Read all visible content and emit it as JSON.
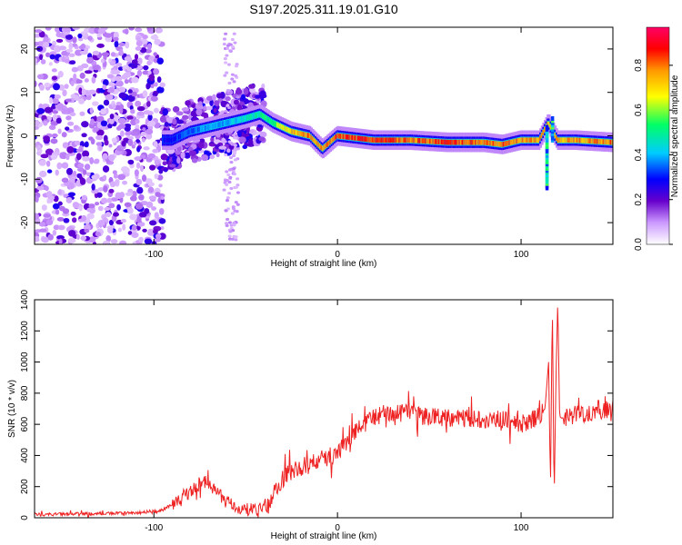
{
  "title": "S197.2025.311.19.01.G10",
  "chart_data": [
    {
      "type": "heatmap",
      "title": "S197.2025.311.19.01.G10",
      "xlabel": "Height of straight line (km)",
      "ylabel": "Frequency (Hz)",
      "xlim": [
        -165,
        150
      ],
      "ylim": [
        -25,
        25
      ],
      "xticks": [
        -100,
        0,
        100
      ],
      "yticks": [
        -20,
        -10,
        0,
        10,
        20
      ],
      "colorbar": {
        "label": "Normalized spectral amplitude",
        "range": [
          0.0,
          0.97
        ],
        "ticks": [
          "0.0",
          "0.2",
          "0.4",
          "0.6",
          "0.8"
        ],
        "tick_values": [
          0.0,
          0.2,
          0.4,
          0.6,
          0.8
        ],
        "colors": [
          "#ffffff",
          "#cc99ff",
          "#6600cc",
          "#0000ff",
          "#00ccff",
          "#00ff66",
          "#ffff00",
          "#ff9900",
          "#ff0000",
          "#ff0066"
        ]
      },
      "ridge": {
        "x": [
          -90,
          -80,
          -70,
          -60,
          -50,
          -42,
          -35,
          -25,
          -15,
          -8,
          0,
          20,
          40,
          60,
          80,
          90,
          100,
          110,
          115,
          120,
          130,
          150
        ],
        "frequency": [
          -1,
          1,
          2,
          3,
          4,
          5,
          3,
          1,
          0,
          -3,
          0,
          -1,
          -1,
          -1.5,
          -1.5,
          -2,
          -1,
          -1,
          3,
          -1,
          -1,
          -1.5
        ],
        "amplitude": [
          0.35,
          0.4,
          0.45,
          0.45,
          0.5,
          0.55,
          0.6,
          0.75,
          0.85,
          0.8,
          0.9,
          0.9,
          0.85,
          0.9,
          0.85,
          0.85,
          0.8,
          0.8,
          0.75,
          0.8,
          0.8,
          0.85
        ]
      },
      "noise_region_x": [
        -165,
        -95
      ]
    },
    {
      "type": "line",
      "xlabel": "Height of straight line (km)",
      "ylabel": "SNR (10 * v/v)",
      "xlim": [
        -165,
        150
      ],
      "ylim": [
        0,
        1400
      ],
      "xticks": [
        -100,
        0,
        100
      ],
      "yticks": [
        0,
        200,
        400,
        600,
        800,
        1000,
        1200,
        1400
      ],
      "series": [
        {
          "name": "SNR",
          "color": "#ee2222",
          "x": [
            -165,
            -140,
            -110,
            -95,
            -85,
            -78,
            -72,
            -68,
            -62,
            -55,
            -45,
            -38,
            -33,
            -28,
            -20,
            -12,
            -5,
            0,
            5,
            10,
            20,
            30,
            50,
            70,
            90,
            100,
            105,
            110,
            113,
            115,
            116,
            117,
            118,
            119,
            120,
            121,
            122,
            125,
            130,
            140,
            150
          ],
          "y": [
            20,
            25,
            30,
            50,
            120,
            190,
            230,
            200,
            120,
            60,
            50,
            70,
            200,
            280,
            320,
            360,
            390,
            420,
            470,
            560,
            650,
            680,
            650,
            640,
            630,
            600,
            620,
            660,
            700,
            1000,
            200,
            1400,
            100,
            900,
            1400,
            650,
            640,
            650,
            665,
            680,
            700
          ]
        }
      ]
    }
  ]
}
